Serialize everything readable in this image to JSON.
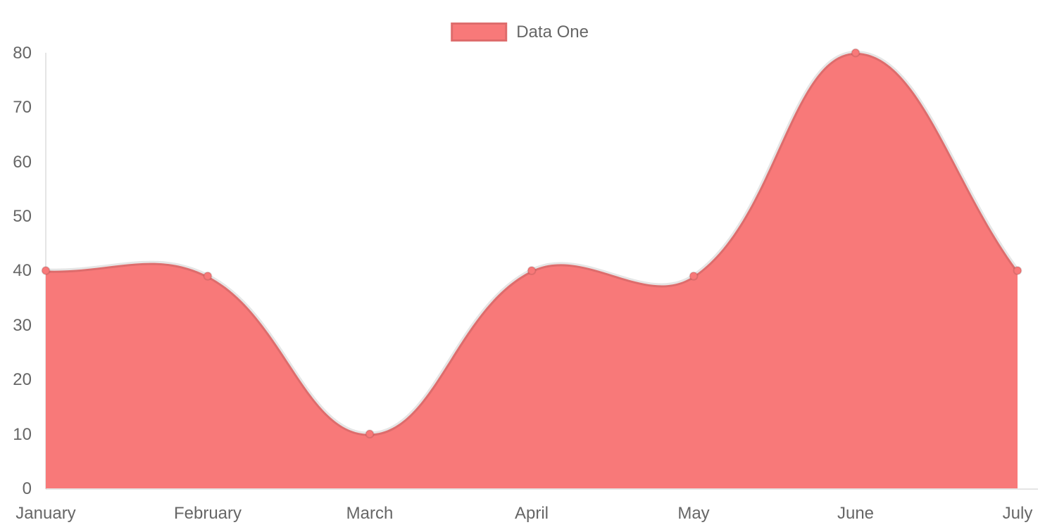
{
  "chart_data": {
    "type": "area",
    "title": "",
    "categories": [
      "January",
      "February",
      "March",
      "April",
      "May",
      "June",
      "July"
    ],
    "series": [
      {
        "name": "Data One",
        "values": [
          40,
          39,
          10,
          40,
          39,
          80,
          40
        ]
      }
    ],
    "y_ticks": [
      "0",
      "10",
      "20",
      "30",
      "40",
      "50",
      "60",
      "70",
      "80"
    ],
    "ylim": [
      0,
      80
    ],
    "xlabel": "",
    "ylabel": "",
    "grid": "none",
    "line_tension": 0.4,
    "legend_position": "top",
    "colors": {
      "fill": "#f87979",
      "line_border": "rgba(0,0,0,0.1)",
      "point_fill": "#f87979",
      "point_border": "rgba(0,0,0,0.1)",
      "axis_line": "rgba(0,0,0,0.1)",
      "text": "#666666"
    }
  }
}
